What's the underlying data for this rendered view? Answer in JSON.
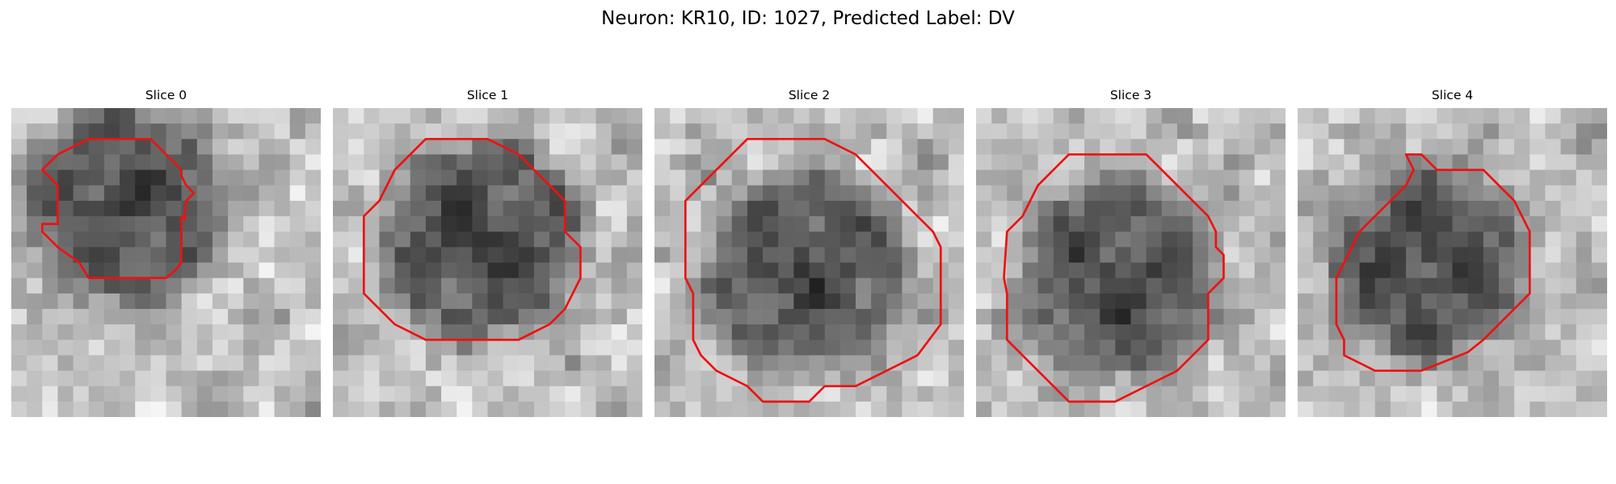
{
  "figure": {
    "title": "Neuron: KR10, ID: 1027, Predicted Label: DV"
  },
  "colors": {
    "contour": "#ee1111",
    "background": "#ffffff"
  },
  "panels": [
    {
      "title": "Slice 0",
      "icon": "grayscale-microscopy-icon",
      "contour": [
        [
          6,
          2
        ],
        [
          9,
          2
        ],
        [
          10,
          3
        ],
        [
          11,
          4
        ],
        [
          11,
          4.4
        ],
        [
          11.3,
          5
        ],
        [
          11.8,
          5.5
        ],
        [
          11.3,
          6
        ],
        [
          11.2,
          7.2
        ],
        [
          11,
          7
        ],
        [
          11,
          10
        ],
        [
          10.6,
          10.5
        ],
        [
          10,
          11
        ],
        [
          5,
          11
        ],
        [
          4.4,
          10
        ],
        [
          3,
          9
        ],
        [
          2,
          8
        ],
        [
          2,
          7.5
        ],
        [
          3,
          7.5
        ],
        [
          3,
          5
        ],
        [
          2,
          4
        ],
        [
          3,
          3
        ],
        [
          5,
          2
        ]
      ]
    },
    {
      "title": "Slice 1",
      "icon": "grayscale-microscopy-icon",
      "contour": [
        [
          6,
          2
        ],
        [
          10,
          2
        ],
        [
          12,
          3
        ],
        [
          13,
          4
        ],
        [
          14,
          5
        ],
        [
          15,
          6
        ],
        [
          15,
          8
        ],
        [
          16,
          9
        ],
        [
          16,
          11
        ],
        [
          15.5,
          12
        ],
        [
          15,
          13
        ],
        [
          14,
          14
        ],
        [
          12,
          15
        ],
        [
          6,
          15
        ],
        [
          4,
          14
        ],
        [
          3,
          13
        ],
        [
          2,
          12
        ],
        [
          2,
          7
        ],
        [
          3,
          6
        ],
        [
          4,
          4
        ],
        [
          5,
          3
        ]
      ]
    },
    {
      "title": "Slice 2",
      "icon": "grayscale-microscopy-icon",
      "contour": [
        [
          6,
          2
        ],
        [
          11,
          2
        ],
        [
          13,
          3
        ],
        [
          14,
          4
        ],
        [
          15,
          5
        ],
        [
          16,
          6
        ],
        [
          17,
          7
        ],
        [
          18,
          8
        ],
        [
          18.5,
          9
        ],
        [
          18.5,
          14
        ],
        [
          17,
          16
        ],
        [
          15,
          17
        ],
        [
          13,
          18
        ],
        [
          11,
          18
        ],
        [
          10,
          19
        ],
        [
          7,
          19
        ],
        [
          6,
          18
        ],
        [
          4,
          17
        ],
        [
          3,
          16
        ],
        [
          2.5,
          15
        ],
        [
          2.5,
          12
        ],
        [
          2,
          11
        ],
        [
          2,
          6
        ],
        [
          3,
          5
        ],
        [
          4,
          4
        ],
        [
          5,
          3
        ]
      ]
    },
    {
      "title": "Slice 3",
      "icon": "grayscale-microscopy-icon",
      "contour": [
        [
          6,
          3
        ],
        [
          11,
          3
        ],
        [
          12,
          4
        ],
        [
          13,
          5
        ],
        [
          14,
          6
        ],
        [
          15,
          7
        ],
        [
          15.5,
          8
        ],
        [
          15.5,
          9
        ],
        [
          16,
          9.5
        ],
        [
          16,
          11
        ],
        [
          15,
          12
        ],
        [
          15,
          15
        ],
        [
          14,
          16
        ],
        [
          13,
          17
        ],
        [
          11,
          18
        ],
        [
          9,
          19
        ],
        [
          6,
          19
        ],
        [
          5,
          18
        ],
        [
          4,
          17
        ],
        [
          3,
          16
        ],
        [
          2,
          15
        ],
        [
          2,
          12
        ],
        [
          1.8,
          11
        ],
        [
          2,
          8
        ],
        [
          3,
          7
        ],
        [
          4,
          5
        ],
        [
          5,
          4
        ]
      ]
    },
    {
      "title": "Slice 4",
      "icon": "grayscale-microscopy-icon",
      "contour": [
        [
          7,
          3
        ],
        [
          8,
          3
        ],
        [
          9,
          4
        ],
        [
          12,
          4
        ],
        [
          13,
          5
        ],
        [
          14,
          6
        ],
        [
          14.5,
          7
        ],
        [
          15,
          8
        ],
        [
          15,
          12
        ],
        [
          14,
          13
        ],
        [
          13,
          14
        ],
        [
          12,
          15
        ],
        [
          11,
          15.8
        ],
        [
          10,
          16.2
        ],
        [
          8,
          17
        ],
        [
          5,
          17
        ],
        [
          4,
          16.5
        ],
        [
          3,
          16
        ],
        [
          3,
          15
        ],
        [
          2.5,
          14
        ],
        [
          2.5,
          11
        ],
        [
          3,
          10
        ],
        [
          3.5,
          9
        ],
        [
          4,
          8
        ],
        [
          5,
          7
        ],
        [
          6,
          6
        ],
        [
          7,
          5
        ],
        [
          7.5,
          4
        ]
      ]
    }
  ]
}
